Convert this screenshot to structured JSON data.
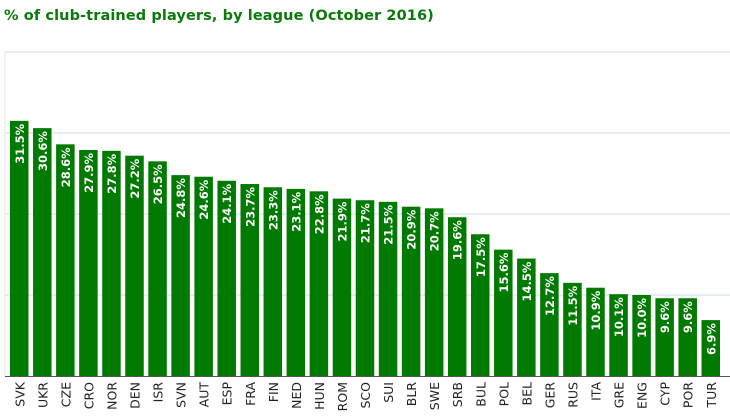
{
  "chart_data": {
    "type": "bar",
    "title": "% of club-trained players, by league (October 2016)",
    "xlabel": "",
    "ylabel": "",
    "ylim": [
      0,
      40
    ],
    "grid": true,
    "gridlines": [
      0,
      10,
      20,
      30,
      40
    ],
    "bar_color": "#007a00",
    "label_color": "#ffffff",
    "categories": [
      "SVK",
      "UKR",
      "CZE",
      "CRO",
      "NOR",
      "DEN",
      "ISR",
      "SVN",
      "AUT",
      "ESP",
      "FRA",
      "FIN",
      "NED",
      "HUN",
      "ROM",
      "SCO",
      "SUI",
      "BLR",
      "SWE",
      "SRB",
      "BUL",
      "POL",
      "BEL",
      "GER",
      "RUS",
      "ITA",
      "GRE",
      "ENG",
      "CYP",
      "POR",
      "TUR"
    ],
    "values": [
      31.5,
      30.6,
      28.6,
      27.9,
      27.8,
      27.2,
      26.5,
      24.8,
      24.6,
      24.1,
      23.7,
      23.3,
      23.1,
      22.8,
      21.9,
      21.7,
      21.5,
      20.9,
      20.7,
      19.6,
      17.5,
      15.6,
      14.5,
      12.7,
      11.5,
      10.9,
      10.1,
      10.0,
      9.6,
      9.6,
      6.9
    ],
    "data_labels": [
      "31.5%",
      "30.6%",
      "28.6%",
      "27.9%",
      "27.8%",
      "27.2%",
      "26.5%",
      "24.8%",
      "24.6%",
      "24.1%",
      "23.7%",
      "23.3%",
      "23.1%",
      "22.8%",
      "21.9%",
      "21.7%",
      "21.5%",
      "20.9%",
      "20.7%",
      "19.6%",
      "17.5%",
      "15.6%",
      "14.5%",
      "12.7%",
      "11.5%",
      "10.9%",
      "10.1%",
      "10.0%",
      "9.6%",
      "9.6%",
      "6.9%"
    ]
  }
}
